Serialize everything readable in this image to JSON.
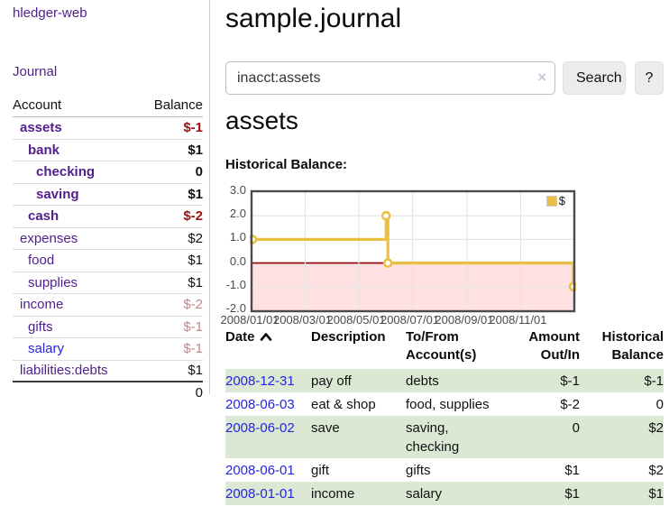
{
  "colors": {
    "accent_purple": "#511E8B",
    "link_blue": "#2525E0",
    "negative_strong": "#A01212",
    "negative_muted": "#C08888",
    "row_green": "#DBE8D4",
    "chart_line": "#E9C044",
    "chart_negative_fill": "#FFE1E1",
    "chart_zero_line": "#8B0000"
  },
  "sidebar": {
    "brand": "hledger-web",
    "journal_label": "Journal",
    "table": {
      "account_header": "Account",
      "balance_header": "Balance",
      "rows": [
        {
          "name": "assets",
          "depth": 0,
          "balance": "$-1",
          "bold": true,
          "neg": "strong"
        },
        {
          "name": "bank",
          "depth": 1,
          "balance": "$1",
          "bold": true,
          "neg": "none"
        },
        {
          "name": "checking",
          "depth": 2,
          "balance": "0",
          "bold": true,
          "neg": "none"
        },
        {
          "name": "saving",
          "depth": 2,
          "balance": "$1",
          "bold": true,
          "neg": "none"
        },
        {
          "name": "cash",
          "depth": 1,
          "balance": "$-2",
          "bold": true,
          "neg": "strong"
        },
        {
          "name": "expenses",
          "depth": 0,
          "balance": "$2",
          "bold": false,
          "neg": "none"
        },
        {
          "name": "food",
          "depth": 1,
          "balance": "$1",
          "bold": false,
          "neg": "none"
        },
        {
          "name": "supplies",
          "depth": 1,
          "balance": "$1",
          "bold": false,
          "neg": "none"
        },
        {
          "name": "income",
          "depth": 0,
          "balance": "$-2",
          "bold": false,
          "neg": "muted"
        },
        {
          "name": "gifts",
          "depth": 1,
          "balance": "$-1",
          "bold": false,
          "neg": "muted"
        },
        {
          "name": "salary",
          "depth": 1,
          "balance": "$-1",
          "bold": false,
          "neg": "muted",
          "link_color": "blue"
        },
        {
          "name": "liabilities:debts",
          "depth": 0,
          "balance": "$1",
          "bold": false,
          "neg": "none"
        }
      ],
      "total": "0"
    }
  },
  "header": {
    "title": "sample.journal"
  },
  "search": {
    "value": "inacct:assets",
    "clear_icon": "×",
    "button": "Search",
    "help_button": "?"
  },
  "account_page": {
    "title": "assets",
    "chart_title": "Historical Balance:"
  },
  "chart_data": {
    "type": "line",
    "step": true,
    "title": "Historical Balance",
    "series": [
      {
        "name": "$",
        "color": "#E9C044",
        "points": [
          [
            "2008-01-01",
            1
          ],
          [
            "2008-06-01",
            2
          ],
          [
            "2008-06-03",
            0
          ],
          [
            "2008-12-31",
            -1
          ]
        ]
      }
    ],
    "x_ticks": [
      "2008/01/01",
      "2008/03/01",
      "2008/05/01",
      "2008/07/01",
      "2008/09/01",
      "2008/11/01"
    ],
    "y_ticks": [
      "3.0",
      "2.0",
      "1.0",
      "0.0",
      "-1.0",
      "-2.0"
    ],
    "ylim": [
      -2,
      3
    ],
    "x_range": [
      "2008-01-01",
      "2008-12-31"
    ],
    "grid": true,
    "legend_position": "top-right",
    "legend": {
      "label": "$"
    }
  },
  "register": {
    "columns": {
      "date": "Date",
      "description": "Description",
      "tofrom": "To/From Account(s)",
      "amount": "Amount Out/In",
      "balance": "Historical Balance"
    },
    "rows": [
      {
        "date": "2008-12-31",
        "description": "pay off",
        "accounts": "debts",
        "amount": "$-1",
        "balance": "$-1",
        "amount_neg": true,
        "balance_neg": true
      },
      {
        "date": "2008-06-03",
        "description": "eat & shop",
        "accounts": "food, supplies",
        "amount": "$-2",
        "balance": "0",
        "amount_neg": true,
        "balance_neg": false
      },
      {
        "date": "2008-06-02",
        "description": "save",
        "accounts": "saving, checking",
        "amount": "0",
        "balance": "$2",
        "amount_neg": false,
        "balance_neg": false
      },
      {
        "date": "2008-06-01",
        "description": "gift",
        "accounts": "gifts",
        "amount": "$1",
        "balance": "$2",
        "amount_neg": false,
        "balance_neg": false
      },
      {
        "date": "2008-01-01",
        "description": "income",
        "accounts": "salary",
        "amount": "$1",
        "balance": "$1",
        "amount_neg": false,
        "balance_neg": false
      }
    ]
  }
}
